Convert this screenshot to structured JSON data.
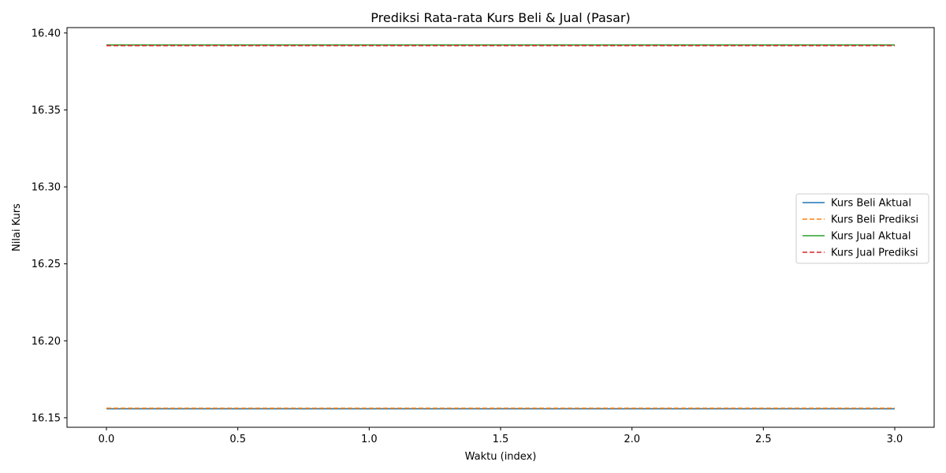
{
  "chart_data": {
    "type": "line",
    "title": "Prediksi Rata-rata Kurs Beli & Jual (Pasar)",
    "xlabel": "Waktu (index)",
    "ylabel": "Nilai Kurs",
    "xlim": [
      -0.15,
      3.15
    ],
    "ylim": [
      16.1438,
      16.4035
    ],
    "xticks": [
      0.0,
      0.5,
      1.0,
      1.5,
      2.0,
      2.5,
      3.0
    ],
    "xtick_labels": [
      "0.0",
      "0.5",
      "1.0",
      "1.5",
      "2.0",
      "2.5",
      "3.0"
    ],
    "yticks": [
      16.15,
      16.2,
      16.25,
      16.3,
      16.35,
      16.4
    ],
    "ytick_labels": [
      "16.15",
      "16.20",
      "16.25",
      "16.30",
      "16.35",
      "16.40"
    ],
    "x": [
      0,
      1,
      2,
      3
    ],
    "series": [
      {
        "name": "Kurs Beli Aktual",
        "values": [
          16.1558,
          16.1558,
          16.1558,
          16.1558
        ],
        "color": "#1f77b4",
        "dash": false
      },
      {
        "name": "Kurs Beli Prediksi",
        "values": [
          16.1562,
          16.1562,
          16.1562,
          16.1562
        ],
        "color": "#ff7f0e",
        "dash": true
      },
      {
        "name": "Kurs Jual Aktual",
        "values": [
          16.3922,
          16.3922,
          16.3922,
          16.3922
        ],
        "color": "#2ca02c",
        "dash": false
      },
      {
        "name": "Kurs Jual Prediksi",
        "values": [
          16.3918,
          16.3918,
          16.3918,
          16.3918
        ],
        "color": "#d62728",
        "dash": true
      }
    ],
    "grid": false,
    "legend_position": "center-right"
  }
}
